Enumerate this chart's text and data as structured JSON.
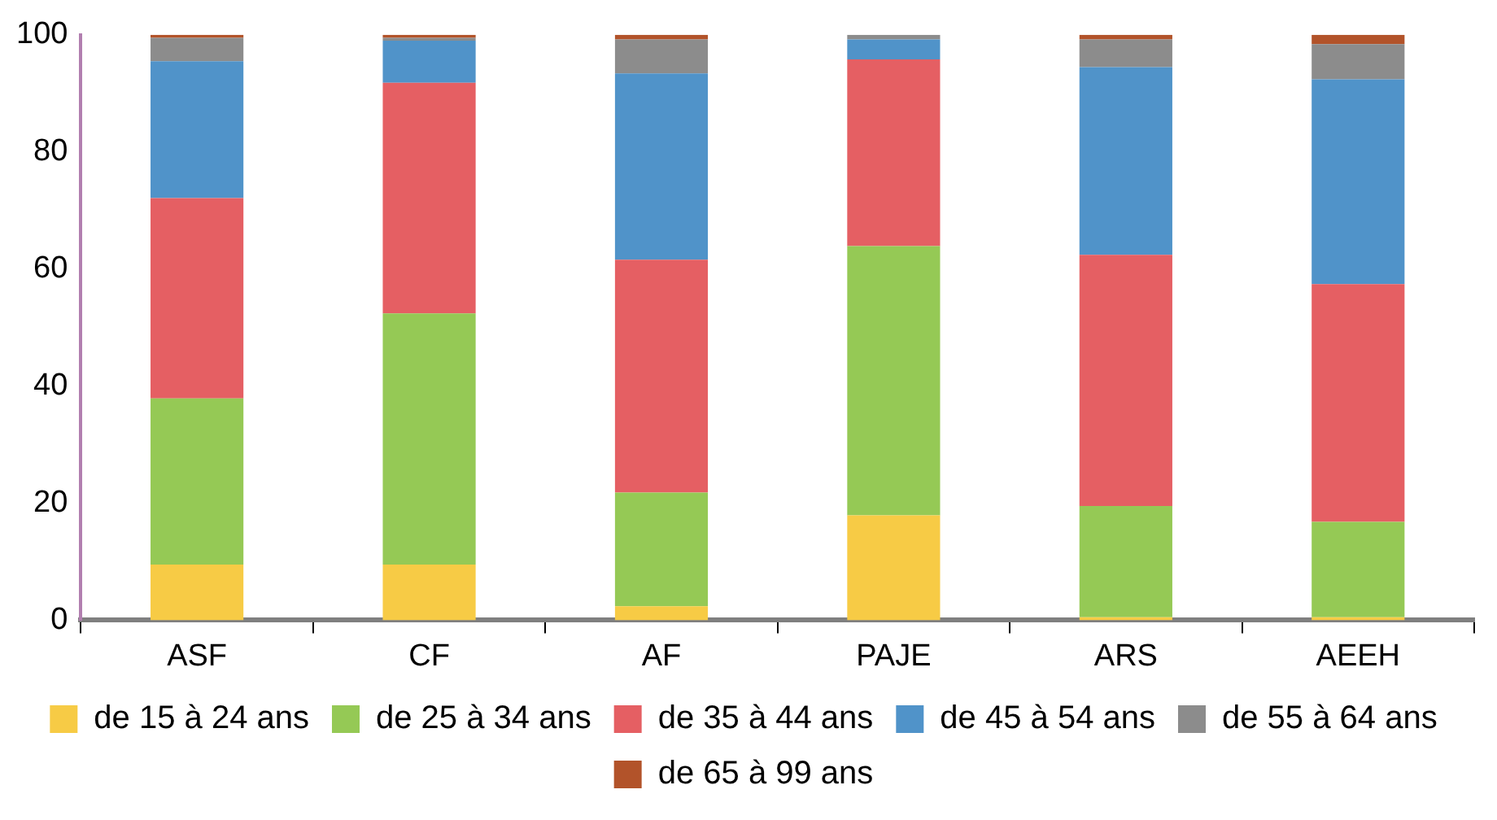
{
  "chart_data": {
    "type": "bar",
    "stacked": true,
    "categories": [
      "ASF",
      "CF",
      "AF",
      "PAJE",
      "ARS",
      "AEEH"
    ],
    "series": [
      {
        "name": "de 15 à 24 ans",
        "color": "#f7cb45",
        "values": [
          9.5,
          9.5,
          2.4,
          17.9,
          0.5,
          0.5
        ]
      },
      {
        "name": "de 25 à 34 ans",
        "color": "#95c955",
        "values": [
          28.4,
          42.9,
          19.4,
          46,
          19,
          16.3
        ]
      },
      {
        "name": "de 35 à 44 ans",
        "color": "#e55f63",
        "values": [
          34.2,
          39.4,
          39.8,
          31.9,
          42.9,
          40.6
        ]
      },
      {
        "name": "de 45 à 54 ans",
        "color": "#5093c9",
        "values": [
          23.4,
          7.2,
          31.8,
          3.4,
          32.1,
          35
        ]
      },
      {
        "name": "de 55 à 64 ans",
        "color": "#8c8c8c",
        "values": [
          4,
          0.5,
          5.8,
          0.8,
          4.7,
          6
        ]
      },
      {
        "name": "de 65 à 99 ans",
        "color": "#b2532a",
        "values": [
          0.5,
          0.5,
          0.8,
          0,
          0.8,
          1.6
        ]
      }
    ],
    "ylim": [
      0,
      100
    ],
    "yticks": [
      0,
      20,
      40,
      60,
      80,
      100
    ],
    "grid": false,
    "legend": "bottom"
  }
}
